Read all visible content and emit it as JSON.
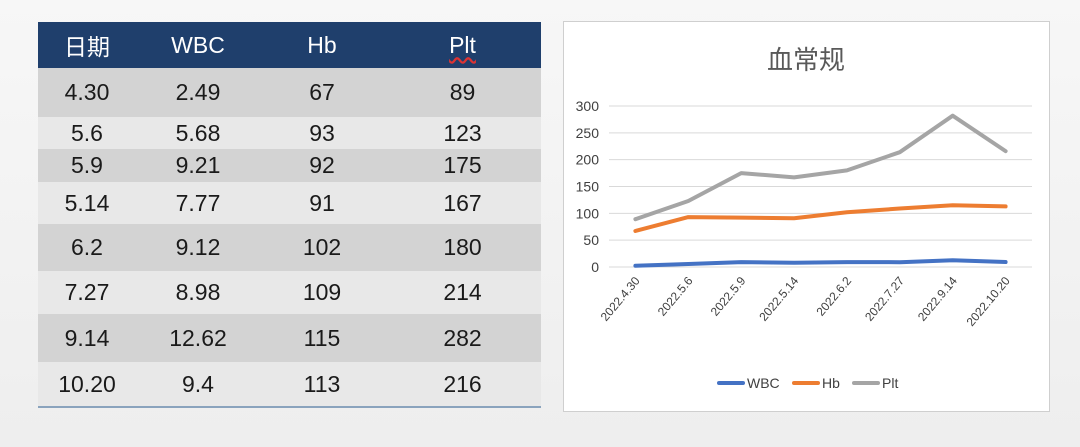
{
  "table": {
    "headers": [
      "日期",
      "WBC",
      "Hb",
      "Plt"
    ],
    "rows": [
      [
        "4.30",
        "2.49",
        "67",
        "89"
      ],
      [
        "5.6",
        "5.68",
        "93",
        "123"
      ],
      [
        "5.9",
        "9.21",
        "92",
        "175"
      ],
      [
        "5.14",
        "7.77",
        "91",
        "167"
      ],
      [
        "6.2",
        "9.12",
        "102",
        "180"
      ],
      [
        "7.27",
        "8.98",
        "109",
        "214"
      ],
      [
        "9.14",
        "12.62",
        "115",
        "282"
      ],
      [
        "10.20",
        "9.4",
        "113",
        "216"
      ]
    ]
  },
  "chart_data": {
    "type": "line",
    "title": "血常规",
    "xlabel": "",
    "ylabel": "",
    "x": [
      "2022.4.30",
      "2022.5.6",
      "2022.5.9",
      "2022.5.14",
      "2022.6.2",
      "2022.7.27",
      "2022.9.14",
      "2022.10.20"
    ],
    "yticks": [
      0,
      50,
      100,
      150,
      200,
      250,
      300
    ],
    "ylim": [
      0,
      300
    ],
    "grid": true,
    "legend": "bottom",
    "series": [
      {
        "name": "WBC",
        "color": "#4472c4",
        "values": [
          2.49,
          5.68,
          9.21,
          7.77,
          9.12,
          8.98,
          12.62,
          9.4
        ]
      },
      {
        "name": "Hb",
        "color": "#ed7d31",
        "values": [
          67,
          93,
          92,
          91,
          102,
          109,
          115,
          113
        ]
      },
      {
        "name": "Plt",
        "color": "#a5a5a5",
        "values": [
          89,
          123,
          175,
          167,
          180,
          214,
          282,
          216
        ]
      }
    ]
  }
}
